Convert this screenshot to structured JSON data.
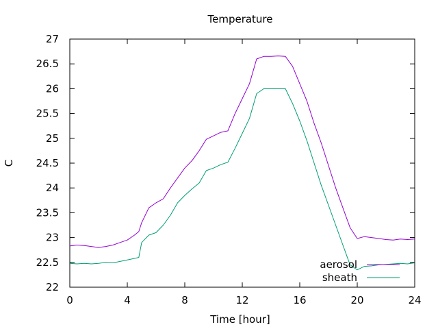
{
  "chart_data": {
    "type": "line",
    "title": "Temperature",
    "xlabel": "Time [hour]",
    "ylabel": "C",
    "xlim": [
      0,
      24
    ],
    "ylim": [
      22,
      27
    ],
    "xticks": [
      0,
      4,
      8,
      12,
      16,
      20,
      24
    ],
    "yticks": [
      22,
      22.5,
      23,
      23.5,
      24,
      24.5,
      25,
      25.5,
      26,
      26.5,
      27
    ],
    "xtick_labels": [
      "0",
      "4",
      "8",
      "12",
      "16",
      "20",
      "24"
    ],
    "ytick_labels": [
      "22",
      "22.5",
      "23",
      "23.5",
      "24",
      "24.5",
      "25",
      "25.5",
      "26",
      "26.5",
      "27"
    ],
    "grid": false,
    "legend_position": "bottom-right",
    "series": [
      {
        "name": "aerosol",
        "color": "#9400d3",
        "x": [
          0,
          0.5,
          1,
          1.5,
          2,
          2.5,
          3,
          3.5,
          4,
          4.5,
          4.8,
          5,
          5.5,
          6,
          6.5,
          7,
          7.5,
          8,
          8.5,
          9,
          9.5,
          10,
          10.5,
          11,
          11.5,
          12,
          12.5,
          13,
          13.5,
          14,
          14.5,
          15,
          15.5,
          16,
          16.5,
          17,
          17.5,
          18,
          18.5,
          19,
          19.5,
          20,
          20.5,
          21,
          21.5,
          22,
          22.5,
          23,
          23.5,
          24
        ],
        "y": [
          22.83,
          22.85,
          22.84,
          22.82,
          22.8,
          22.82,
          22.85,
          22.9,
          22.95,
          23.05,
          23.12,
          23.3,
          23.6,
          23.7,
          23.78,
          24.0,
          24.2,
          24.4,
          24.55,
          24.75,
          24.98,
          25.05,
          25.12,
          25.15,
          25.5,
          25.8,
          26.1,
          26.6,
          26.65,
          26.65,
          26.66,
          26.65,
          26.45,
          26.1,
          25.75,
          25.3,
          24.9,
          24.45,
          24.0,
          23.6,
          23.2,
          22.98,
          23.02,
          23.0,
          22.98,
          22.96,
          22.95,
          22.97,
          22.96,
          22.97
        ]
      },
      {
        "name": "sheath",
        "color": "#009e73",
        "x": [
          0,
          0.5,
          1,
          1.5,
          2,
          2.5,
          3,
          3.5,
          4,
          4.5,
          4.8,
          5,
          5.5,
          6,
          6.5,
          7,
          7.5,
          8,
          8.5,
          9,
          9.5,
          10,
          10.5,
          11,
          11.5,
          12,
          12.5,
          13,
          13.5,
          14,
          14.5,
          15,
          15.5,
          16,
          16.5,
          17,
          17.5,
          18,
          18.5,
          19,
          19.5,
          20,
          20.5,
          21,
          21.5,
          22,
          22.5,
          23,
          23.5,
          24
        ],
        "y": [
          22.48,
          22.47,
          22.48,
          22.47,
          22.48,
          22.5,
          22.49,
          22.52,
          22.55,
          22.58,
          22.6,
          22.9,
          23.05,
          23.1,
          23.25,
          23.45,
          23.7,
          23.85,
          23.98,
          24.1,
          24.35,
          24.4,
          24.47,
          24.52,
          24.8,
          25.1,
          25.4,
          25.9,
          26.0,
          26.0,
          26.0,
          26.0,
          25.7,
          25.35,
          24.95,
          24.5,
          24.05,
          23.65,
          23.25,
          22.85,
          22.45,
          22.35,
          22.42,
          22.43,
          22.45,
          22.46,
          22.47,
          22.48,
          22.47,
          22.49
        ]
      }
    ]
  }
}
